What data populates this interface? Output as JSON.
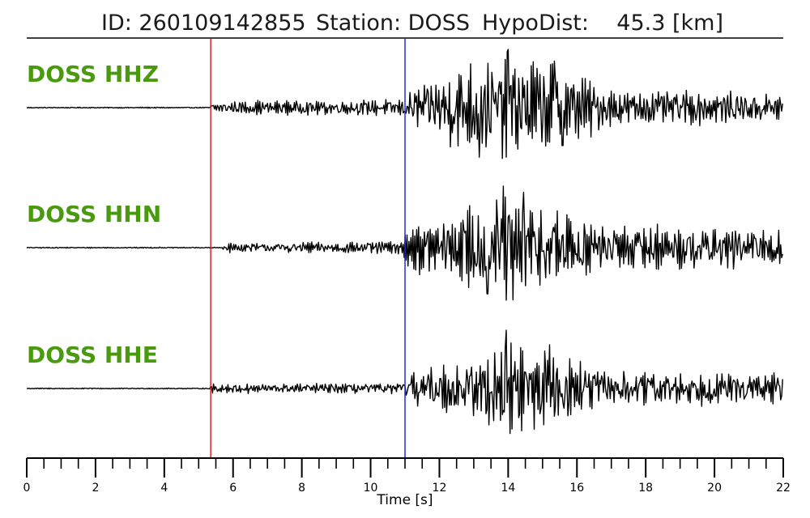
{
  "title": {
    "id_text": "ID: 260109142855",
    "station_text": "Station: DOSS",
    "hypodist_text": "HypoDist:    45.3 [km]"
  },
  "colors": {
    "label": "#4a9a10",
    "p_pick": "#e02020",
    "s_pick": "#2030d0",
    "trace": "#000000"
  },
  "chart_data": {
    "type": "line",
    "xlabel": "Time [s]",
    "xlim": [
      0,
      22
    ],
    "x_ticks": [
      0,
      2,
      4,
      6,
      8,
      10,
      12,
      14,
      16,
      18,
      20,
      22
    ],
    "x_tick_labels": [
      "0",
      "2",
      "4",
      "6",
      "8",
      "10",
      "12",
      "14",
      "16",
      "18",
      "20",
      "22"
    ],
    "minor_tick_step": 0.5,
    "p_pick_time": 5.35,
    "s_pick_time": 11.0,
    "series": [
      {
        "name": "DOSS HHZ",
        "envelope": [
          [
            0,
            0.01
          ],
          [
            5.3,
            0.01
          ],
          [
            5.4,
            0.12
          ],
          [
            8,
            0.13
          ],
          [
            10.9,
            0.16
          ],
          [
            11.2,
            0.35
          ],
          [
            12.5,
            0.8
          ],
          [
            14.0,
            1.0
          ],
          [
            15.5,
            0.85
          ],
          [
            17.0,
            0.35
          ],
          [
            22,
            0.3
          ]
        ],
        "peaks": [
          [
            13.15,
            -0.85
          ],
          [
            14.0,
            1.0
          ],
          [
            13.95,
            -0.85
          ],
          [
            15.35,
            0.8
          ],
          [
            15.6,
            -0.65
          ]
        ]
      },
      {
        "name": "DOSS HHN",
        "envelope": [
          [
            0,
            0.01
          ],
          [
            5.6,
            0.01
          ],
          [
            5.9,
            0.08
          ],
          [
            10.9,
            0.12
          ],
          [
            11.2,
            0.4
          ],
          [
            12.5,
            0.6
          ],
          [
            13.8,
            1.0
          ],
          [
            15.5,
            0.7
          ],
          [
            17.0,
            0.4
          ],
          [
            22,
            0.35
          ]
        ],
        "peaks": [
          [
            13.85,
            1.0
          ],
          [
            14.15,
            -0.85
          ],
          [
            14.45,
            0.9
          ],
          [
            13.4,
            -0.75
          ]
        ]
      },
      {
        "name": "DOSS HHE",
        "envelope": [
          [
            0,
            0.01
          ],
          [
            5.3,
            0.01
          ],
          [
            5.4,
            0.09
          ],
          [
            10.9,
            0.1
          ],
          [
            11.2,
            0.35
          ],
          [
            12.5,
            0.5
          ],
          [
            14.0,
            1.0
          ],
          [
            15.5,
            0.65
          ],
          [
            17.0,
            0.35
          ],
          [
            22,
            0.28
          ]
        ],
        "peaks": [
          [
            13.95,
            1.0
          ],
          [
            14.75,
            -0.7
          ],
          [
            15.2,
            0.75
          ]
        ]
      }
    ]
  }
}
